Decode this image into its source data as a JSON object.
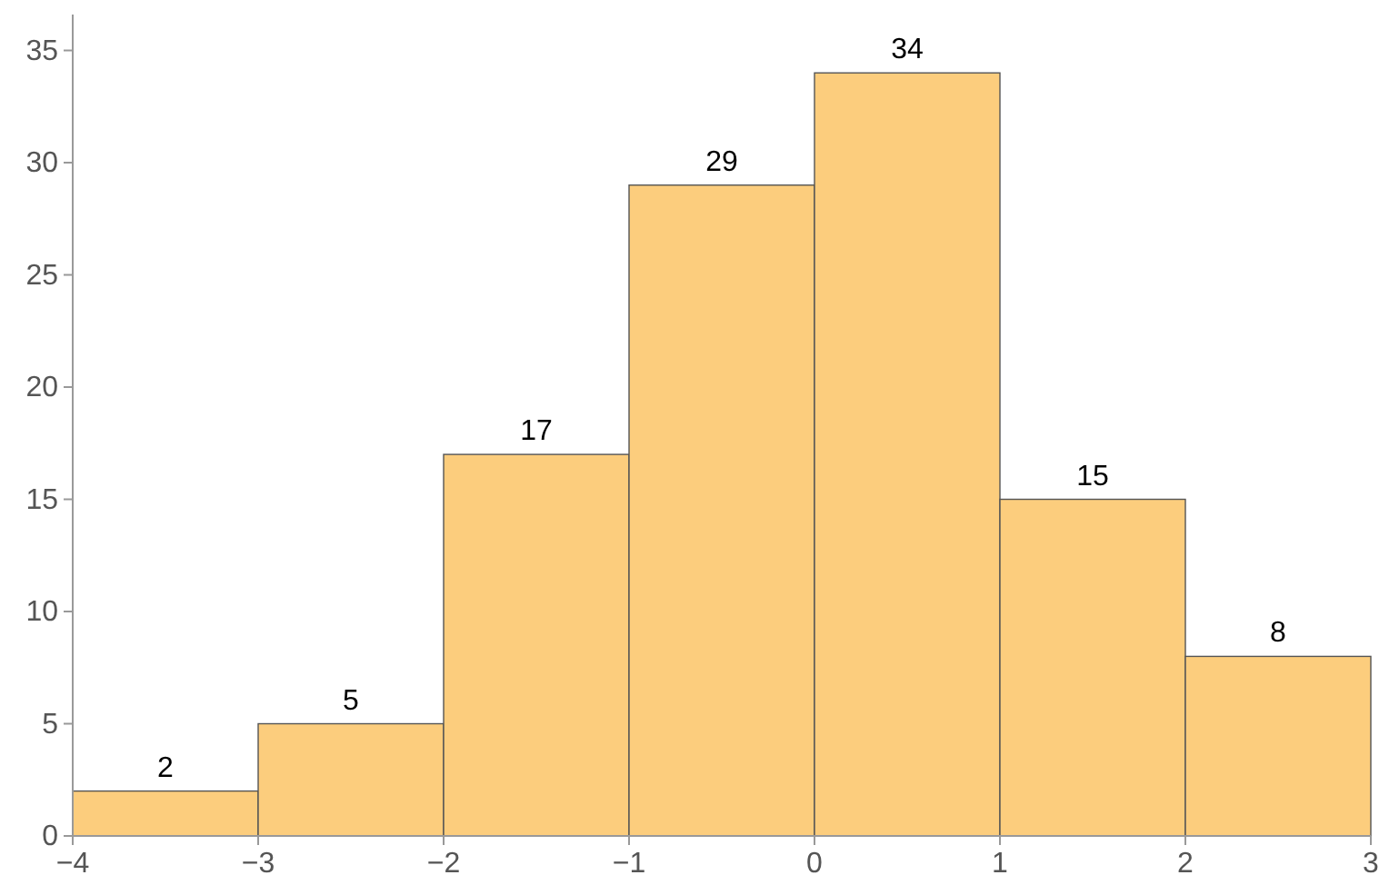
{
  "chart_data": {
    "type": "histogram",
    "bins": [
      -4,
      -3,
      -2,
      -1,
      0,
      1,
      2,
      3
    ],
    "values": [
      2,
      5,
      17,
      29,
      34,
      15,
      8
    ],
    "color": "#fccd7d",
    "data_labels": true,
    "xlim": [
      -4,
      3
    ],
    "xticks": [
      -4,
      -3,
      -2,
      -1,
      0,
      1,
      2,
      3
    ],
    "ylim": [
      0,
      36.6
    ],
    "yticks": [
      0,
      5,
      10,
      15,
      20,
      25,
      30,
      35
    ],
    "grid": false
  }
}
